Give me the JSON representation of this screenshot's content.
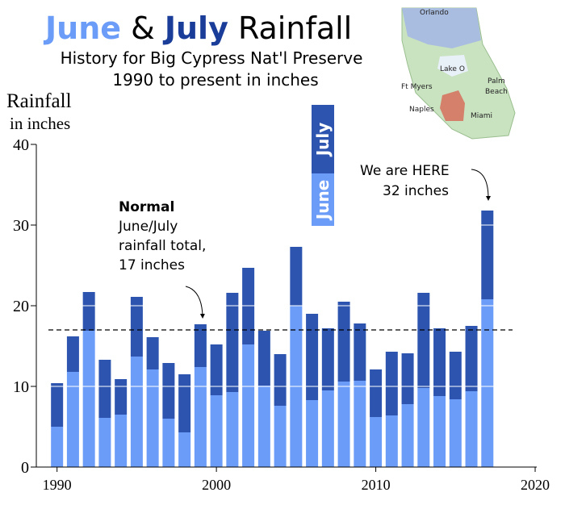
{
  "chart_data": {
    "type": "stacked-bar",
    "title_parts": [
      "June",
      "&",
      "July",
      "Rainfall"
    ],
    "title_colors": [
      "#6b9cf7",
      "#000000",
      "#1a3d99",
      "#000000"
    ],
    "subtitle": [
      "History for Big Cypress Nat'l Preserve",
      "1990 to present in inches"
    ],
    "ylabel": [
      "Rainfall",
      "in inches"
    ],
    "x": [
      1990,
      1991,
      1992,
      1993,
      1994,
      1995,
      1996,
      1997,
      1998,
      1999,
      2000,
      2001,
      2002,
      2003,
      2004,
      2005,
      2006,
      2007,
      2008,
      2009,
      2010,
      2011,
      2012,
      2013,
      2014,
      2015,
      2016,
      2017
    ],
    "series": [
      {
        "name": "June",
        "color": "#6b9cf7",
        "values": [
          5.0,
          11.8,
          16.9,
          6.1,
          6.5,
          13.7,
          12.1,
          6.0,
          4.3,
          12.4,
          8.9,
          9.3,
          15.2,
          10.1,
          7.6,
          20.0,
          8.3,
          9.5,
          10.6,
          10.7,
          6.2,
          6.4,
          7.8,
          9.8,
          8.8,
          8.4,
          9.4,
          20.8
        ]
      },
      {
        "name": "July",
        "color": "#2d55b0",
        "values": [
          5.4,
          4.4,
          4.8,
          7.2,
          4.4,
          7.4,
          4.0,
          6.9,
          7.2,
          5.3,
          6.3,
          12.3,
          9.5,
          6.8,
          6.4,
          7.3,
          10.7,
          7.7,
          9.9,
          7.1,
          5.9,
          7.9,
          6.3,
          11.8,
          8.4,
          5.9,
          8.1,
          11.0
        ]
      }
    ],
    "xlim": [
      1988.7,
      2020.1
    ],
    "xticks": [
      1990,
      2000,
      2010,
      2020
    ],
    "ylim": [
      0,
      40
    ],
    "yticks": [
      0,
      10,
      20,
      30,
      40
    ],
    "grid": true,
    "normal": 17,
    "normal_note": {
      "heading": "Normal",
      "lines": [
        "June/July",
        "rainfall total,",
        "17 inches"
      ]
    },
    "here_note": [
      "We are HERE",
      "32 inches"
    ],
    "map_labels": [
      "Orlando",
      "Lake O",
      "Ft Myers",
      "Palm",
      "Beach",
      "Naples",
      "Miami"
    ]
  }
}
